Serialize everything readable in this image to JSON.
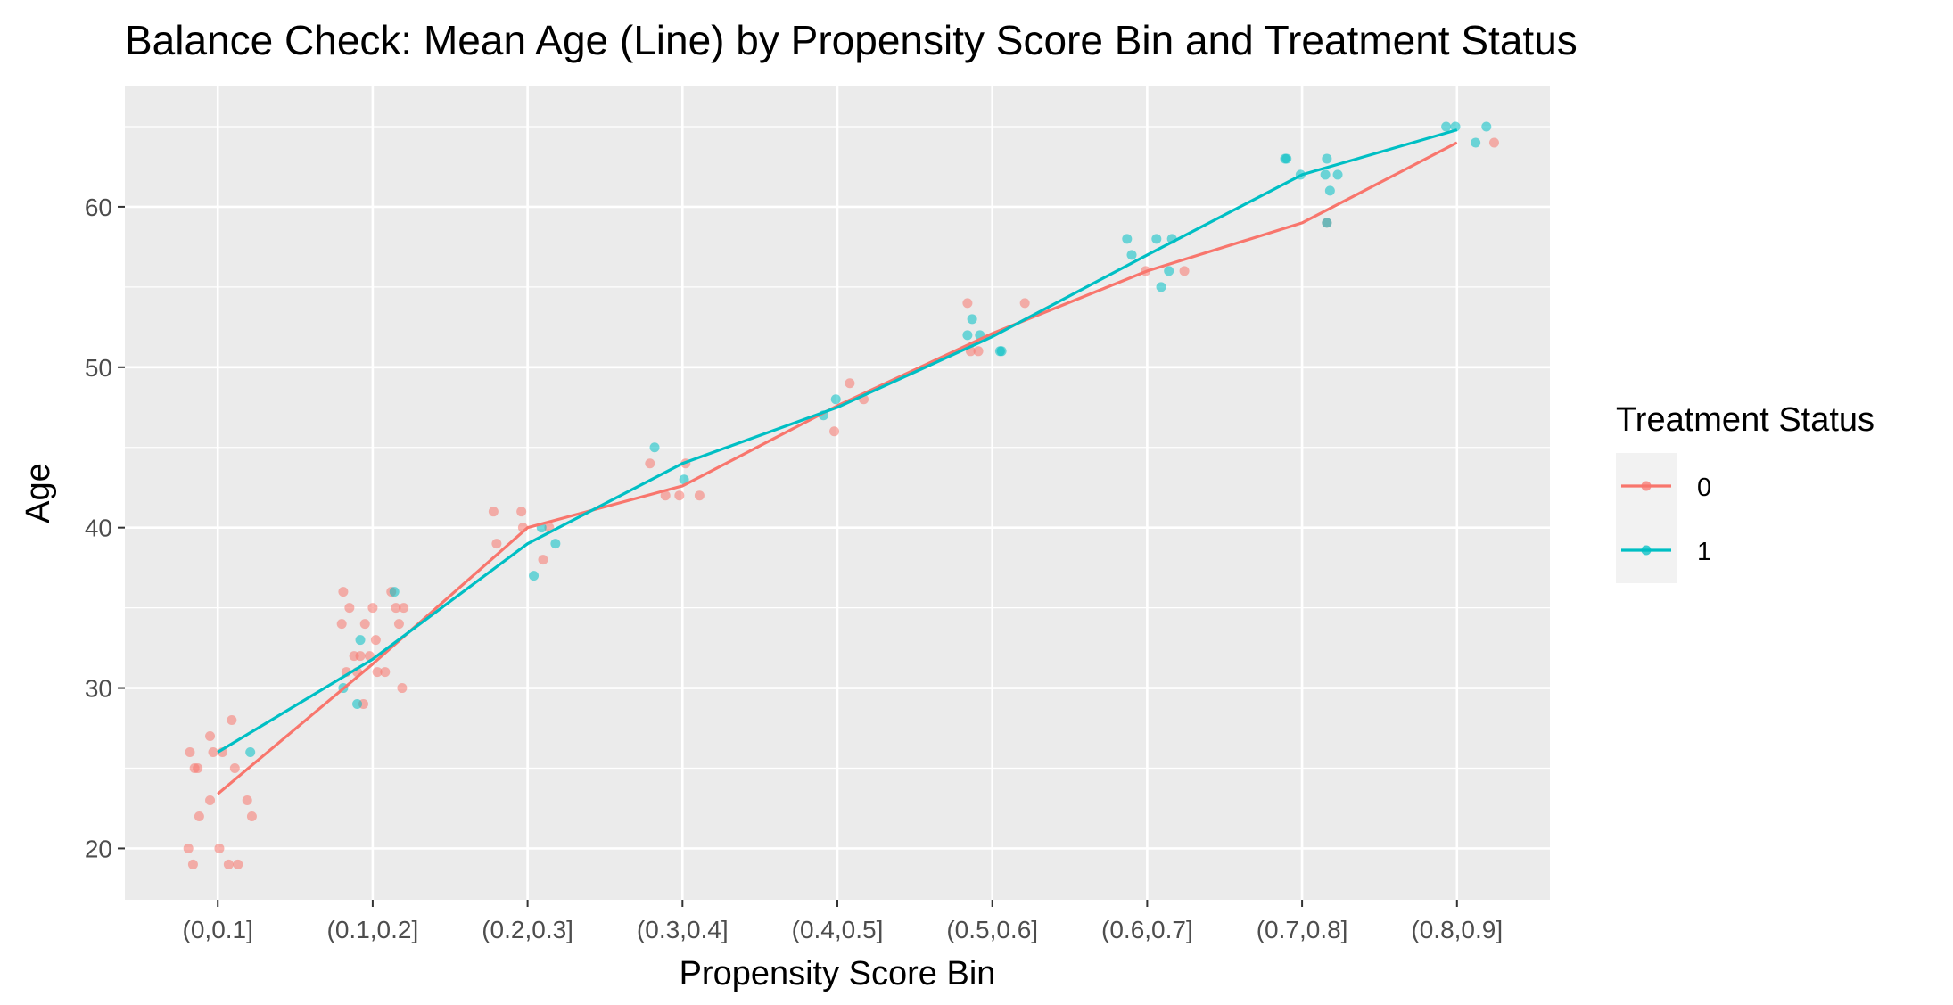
{
  "chart_data": {
    "type": "line",
    "title": "Balance Check: Mean Age (Line) by Propensity Score Bin and Treatment Status",
    "xlabel": "Propensity Score Bin",
    "ylabel": "Age",
    "categories": [
      "(0,0.1]",
      "(0.1,0.2]",
      "(0.2,0.3]",
      "(0.3,0.4]",
      "(0.4,0.5]",
      "(0.5,0.6]",
      "(0.6,0.7]",
      "(0.7,0.8]",
      "(0.8,0.9]"
    ],
    "ylim": [
      16.8,
      67.5
    ],
    "yticks": [
      20,
      30,
      40,
      50,
      60
    ],
    "grid": true,
    "legend": {
      "title": "Treatment Status",
      "position": "right"
    },
    "series": [
      {
        "name": "0",
        "color": "#F8766D",
        "mean_values": [
          23.4,
          31.5,
          40.0,
          42.6,
          47.6,
          52.1,
          56.0,
          59.0,
          64.0
        ],
        "points": [
          [
            0.82,
            26
          ],
          [
            0.85,
            25
          ],
          [
            0.95,
            27
          ],
          [
            0.97,
            26
          ],
          [
            1.09,
            28
          ],
          [
            1.11,
            25
          ],
          [
            0.87,
            25
          ],
          [
            0.95,
            23
          ],
          [
            0.88,
            22
          ],
          [
            1.01,
            20
          ],
          [
            0.81,
            20
          ],
          [
            0.84,
            19
          ],
          [
            1.07,
            19
          ],
          [
            1.13,
            19
          ],
          [
            1.19,
            23
          ],
          [
            1.22,
            22
          ],
          [
            1.03,
            26
          ],
          [
            1.81,
            36
          ],
          [
            1.85,
            35
          ],
          [
            1.8,
            34
          ],
          [
            1.88,
            32
          ],
          [
            1.92,
            32
          ],
          [
            1.95,
            34
          ],
          [
            2.0,
            35
          ],
          [
            2.02,
            33
          ],
          [
            2.08,
            31
          ],
          [
            2.12,
            36
          ],
          [
            2.15,
            35
          ],
          [
            2.17,
            34
          ],
          [
            2.2,
            35
          ],
          [
            2.19,
            30
          ],
          [
            1.94,
            29
          ],
          [
            1.83,
            31
          ],
          [
            1.9,
            31
          ],
          [
            1.98,
            32
          ],
          [
            2.03,
            31
          ],
          [
            2.78,
            41
          ],
          [
            2.8,
            39
          ],
          [
            2.96,
            41
          ],
          [
            2.97,
            40
          ],
          [
            3.1,
            38
          ],
          [
            3.14,
            40
          ],
          [
            3.79,
            44
          ],
          [
            3.89,
            42
          ],
          [
            3.98,
            42
          ],
          [
            4.02,
            44
          ],
          [
            4.11,
            42
          ],
          [
            4.98,
            46
          ],
          [
            5.08,
            49
          ],
          [
            5.17,
            48
          ],
          [
            5.84,
            54
          ],
          [
            5.86,
            51
          ],
          [
            5.91,
            51
          ],
          [
            6.21,
            54
          ],
          [
            6.99,
            56
          ],
          [
            7.24,
            56
          ],
          [
            8.16,
            59
          ],
          [
            9.24,
            64
          ]
        ]
      },
      {
        "name": "1",
        "color": "#00BFC4",
        "mean_values": [
          26.0,
          31.8,
          39.0,
          44.0,
          47.5,
          51.9,
          57.0,
          62.0,
          64.8
        ],
        "points": [
          [
            1.21,
            26
          ],
          [
            1.81,
            30
          ],
          [
            1.9,
            29
          ],
          [
            1.92,
            33
          ],
          [
            2.14,
            36
          ],
          [
            3.04,
            37
          ],
          [
            3.09,
            40
          ],
          [
            3.18,
            39
          ],
          [
            3.82,
            45
          ],
          [
            4.01,
            43
          ],
          [
            4.91,
            47
          ],
          [
            4.99,
            48
          ],
          [
            5.84,
            52
          ],
          [
            5.87,
            53
          ],
          [
            5.92,
            52
          ],
          [
            6.05,
            51
          ],
          [
            6.06,
            51
          ],
          [
            6.87,
            58
          ],
          [
            6.9,
            57
          ],
          [
            7.06,
            58
          ],
          [
            7.09,
            55
          ],
          [
            7.14,
            56
          ],
          [
            7.16,
            58
          ],
          [
            7.89,
            63
          ],
          [
            7.9,
            63
          ],
          [
            7.99,
            62
          ],
          [
            8.15,
            62
          ],
          [
            8.16,
            63
          ],
          [
            8.18,
            61
          ],
          [
            8.23,
            62
          ],
          [
            8.16,
            59
          ],
          [
            8.93,
            65
          ],
          [
            8.99,
            65
          ],
          [
            9.12,
            64
          ],
          [
            9.19,
            65
          ]
        ]
      }
    ]
  }
}
